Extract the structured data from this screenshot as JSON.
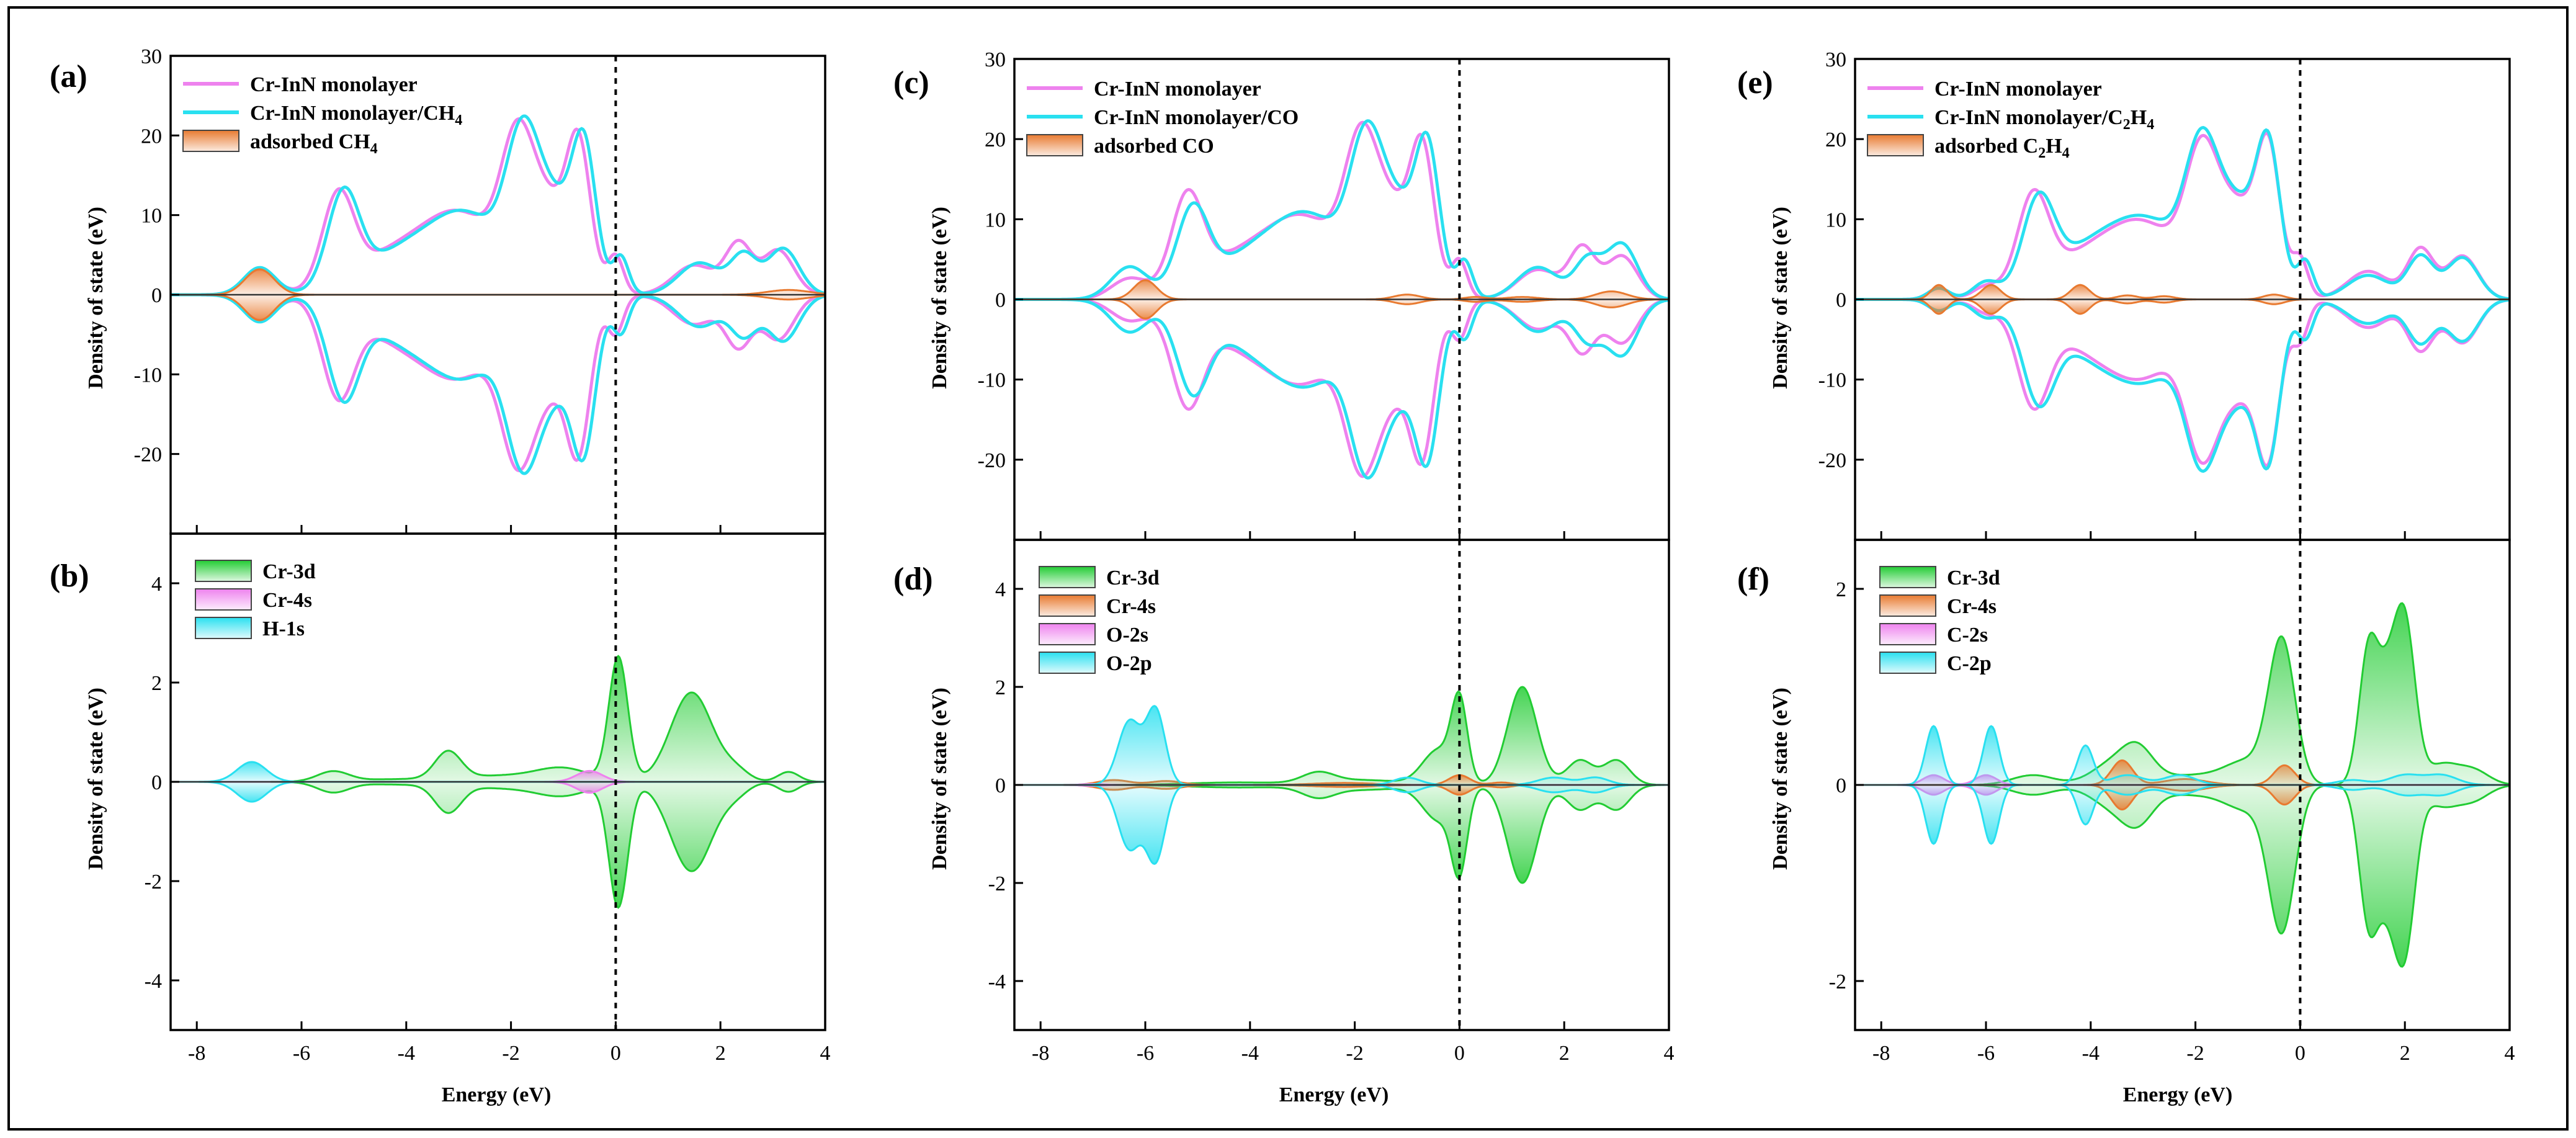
{
  "colors": {
    "pink": "#ee82ee",
    "cyan": "#29e0f0",
    "orange": "#e87a30",
    "green": "#22cc33",
    "frame": "#000000"
  },
  "chart_data": [
    {
      "panel": "(a)",
      "type": "line",
      "ylim": [
        -30,
        30
      ],
      "yticks": [
        -20,
        -10,
        0,
        10,
        20,
        30
      ],
      "xlim": [
        -8.5,
        4
      ],
      "xticks": [
        -8,
        -6,
        -4,
        -2,
        0,
        2,
        4
      ],
      "xlabel": "",
      "ylabel": "Density of state (eV)",
      "legend": [
        "Cr-InN monolayer",
        "Cr-InN monolayer/CH4",
        "adsorbed CH4"
      ],
      "series": [
        {
          "name": "Cr-InN monolayer",
          "color": "pink",
          "fill": false,
          "peaks": [
            [
              -6.8,
              3.2,
              0.3
            ],
            [
              -5.3,
              11.3,
              0.3
            ],
            [
              -4.2,
              5,
              0.8
            ],
            [
              -2.9,
              9,
              0.7
            ],
            [
              -1.9,
              13,
              0.3
            ],
            [
              -0.7,
              14.8,
              0.22
            ],
            [
              -1.3,
              11.5,
              0.5
            ],
            [
              0,
              4.6,
              0.15
            ],
            [
              1.5,
              3.7,
              0.4
            ],
            [
              2.35,
              6.2,
              0.25
            ],
            [
              3.1,
              5.6,
              0.3
            ]
          ]
        },
        {
          "name": "Cr-InN monolayer/CH4",
          "color": "cyan",
          "fill": false,
          "peaks": [
            [
              -6.8,
              3.4,
              0.3
            ],
            [
              -5.2,
              11.5,
              0.3
            ],
            [
              -4.1,
              5,
              0.8
            ],
            [
              -2.8,
              9,
              0.7
            ],
            [
              -1.8,
              13.2,
              0.3
            ],
            [
              -0.6,
              14.7,
              0.22
            ],
            [
              -1.2,
              11.8,
              0.5
            ],
            [
              0.1,
              4.5,
              0.15
            ],
            [
              1.6,
              4,
              0.4
            ],
            [
              2.45,
              4.8,
              0.25
            ],
            [
              3.2,
              5.8,
              0.3
            ]
          ]
        },
        {
          "name": "adsorbed CH4",
          "color": "orange",
          "fill": true,
          "peaks": [
            [
              -6.8,
              3.2,
              0.28
            ],
            [
              3.3,
              0.6,
              0.4
            ]
          ]
        }
      ]
    },
    {
      "panel": "(b)",
      "type": "line",
      "ylim": [
        -5,
        5
      ],
      "yticks": [
        -4,
        -2,
        0,
        2,
        4
      ],
      "xlim": [
        -8.5,
        4
      ],
      "xticks": [
        -8,
        -6,
        -4,
        -2,
        0,
        2,
        4
      ],
      "xlabel": "Energy (eV)",
      "ylabel": "Density of state (eV)",
      "legend": [
        "Cr-3d",
        "Cr-4s",
        "H-1s"
      ],
      "series": [
        {
          "name": "Cr-3d",
          "color": "green",
          "fill": true,
          "peaks": [
            [
              -5.4,
              0.2,
              0.3
            ],
            [
              -4.2,
              0.05,
              0.8
            ],
            [
              -3.2,
              0.55,
              0.25
            ],
            [
              -2.2,
              0.12,
              0.8
            ],
            [
              -1,
              0.25,
              0.5
            ],
            [
              0.05,
              2.5,
              0.18
            ],
            [
              1.45,
              1.8,
              0.4
            ],
            [
              2.3,
              0.2,
              0.25
            ],
            [
              3.3,
              0.2,
              0.2
            ]
          ]
        },
        {
          "name": "Cr-4s",
          "color": "pink",
          "fill": true,
          "peaks": [
            [
              -0.5,
              0.22,
              0.25
            ]
          ]
        },
        {
          "name": "H-1s",
          "color": "cyan",
          "fill": true,
          "peaks": [
            [
              -6.95,
              0.4,
              0.28
            ]
          ]
        }
      ]
    },
    {
      "panel": "(c)",
      "type": "line",
      "ylim": [
        -30,
        30
      ],
      "yticks": [
        -20,
        -10,
        0,
        10,
        20,
        30
      ],
      "xlim": [
        -8.5,
        4
      ],
      "xticks": [
        -8,
        -6,
        -4,
        -2,
        0,
        2,
        4
      ],
      "xlabel": "",
      "ylabel": "Density of state (eV)",
      "legend": [
        "Cr-InN monolayer",
        "Cr-InN monolayer/CO",
        "adsorbed CO"
      ],
      "series": [
        {
          "name": "Cr-InN monolayer",
          "color": "pink",
          "fill": false,
          "peaks": [
            [
              -6.3,
              2.5,
              0.35
            ],
            [
              -5.2,
              11.3,
              0.3
            ],
            [
              -4.2,
              5,
              0.8
            ],
            [
              -2.9,
              9,
              0.7
            ],
            [
              -1.9,
              13,
              0.3
            ],
            [
              -0.7,
              14.6,
              0.22
            ],
            [
              -1.3,
              11.5,
              0.5
            ],
            [
              0,
              4.6,
              0.15
            ],
            [
              1.5,
              3.7,
              0.4
            ],
            [
              2.35,
              6.2,
              0.25
            ],
            [
              3.1,
              5.4,
              0.3
            ]
          ]
        },
        {
          "name": "Cr-InN monolayer/CO",
          "color": "cyan",
          "fill": false,
          "peaks": [
            [
              -6.3,
              4,
              0.35
            ],
            [
              -5.1,
              10,
              0.3
            ],
            [
              -4,
              5,
              0.8
            ],
            [
              -2.8,
              9,
              0.7
            ],
            [
              -1.8,
              13,
              0.3
            ],
            [
              -0.6,
              14.7,
              0.22
            ],
            [
              -1.2,
              11.8,
              0.5
            ],
            [
              0.1,
              4.5,
              0.15
            ],
            [
              1.5,
              4,
              0.4
            ],
            [
              2.45,
              4.7,
              0.25
            ],
            [
              3.1,
              6.9,
              0.3
            ]
          ]
        },
        {
          "name": "adsorbed CO",
          "color": "orange",
          "fill": true,
          "peaks": [
            [
              -6,
              2.4,
              0.22
            ],
            [
              -1,
              0.6,
              0.25
            ],
            [
              0.3,
              0.3,
              0.2
            ],
            [
              1.2,
              0.3,
              0.3
            ],
            [
              2.9,
              1,
              0.3
            ]
          ]
        }
      ]
    },
    {
      "panel": "(d)",
      "type": "line",
      "ylim": [
        -5,
        5
      ],
      "yticks": [
        -4,
        -2,
        0,
        2,
        4
      ],
      "xlim": [
        -8.5,
        4
      ],
      "xticks": [
        -8,
        -6,
        -4,
        -2,
        0,
        2,
        4
      ],
      "xlabel": "Energy (eV)",
      "ylabel": "Density of state (eV)",
      "legend": [
        "Cr-3d",
        "Cr-4s",
        "O-2s",
        "O-2p"
      ],
      "series": [
        {
          "name": "Cr-3d",
          "color": "green",
          "fill": true,
          "peaks": [
            [
              -4.3,
              0.05,
              0.9
            ],
            [
              -2.7,
              0.2,
              0.3
            ],
            [
              -1.9,
              0.1,
              0.8
            ],
            [
              -0.4,
              0.7,
              0.3
            ],
            [
              0,
              1.6,
              0.15
            ],
            [
              1.2,
              2,
              0.28
            ],
            [
              2.3,
              0.5,
              0.25
            ],
            [
              3,
              0.5,
              0.25
            ]
          ]
        },
        {
          "name": "Cr-4s",
          "color": "orange",
          "fill": true,
          "peaks": [
            [
              -6.6,
              0.1,
              0.3
            ],
            [
              -5.6,
              0.08,
              0.3
            ],
            [
              -2.2,
              0.04,
              0.6
            ],
            [
              0,
              0.2,
              0.2
            ],
            [
              0.8,
              0.05,
              0.2
            ]
          ]
        },
        {
          "name": "O-2s",
          "color": "pink",
          "fill": true,
          "peaks": [
            [
              -7,
              0.02,
              0.2
            ]
          ]
        },
        {
          "name": "O-2p",
          "color": "cyan",
          "fill": true,
          "peaks": [
            [
              -6.3,
              1.3,
              0.22
            ],
            [
              -5.8,
              1.5,
              0.18
            ],
            [
              -1,
              0.15,
              0.25
            ],
            [
              1.8,
              0.15,
              0.3
            ],
            [
              2.6,
              0.15,
              0.25
            ]
          ]
        }
      ]
    },
    {
      "panel": "(e)",
      "type": "line",
      "ylim": [
        -30,
        30
      ],
      "yticks": [
        -20,
        -10,
        0,
        10,
        20,
        30
      ],
      "xlim": [
        -8.5,
        4
      ],
      "xticks": [
        -8,
        -6,
        -4,
        -2,
        0,
        2,
        4
      ],
      "xlabel": "",
      "ylabel": "Density of state (eV)",
      "legend": [
        "Cr-InN monolayer",
        "Cr-InN monolayer/C2H4",
        "adsorbed C2H4"
      ],
      "series": [
        {
          "name": "Cr-InN monolayer",
          "color": "pink",
          "fill": false,
          "peaks": [
            [
              -6.9,
              1.4,
              0.2
            ],
            [
              -6,
              1.4,
              0.25
            ],
            [
              -5.1,
              11.3,
              0.3
            ],
            [
              -4.1,
              5,
              0.8
            ],
            [
              -2.9,
              8,
              0.7
            ],
            [
              -1.9,
              13,
              0.3
            ],
            [
              -0.6,
              14.8,
              0.22
            ],
            [
              -1.2,
              11.5,
              0.5
            ],
            [
              0,
              4.6,
              0.15
            ],
            [
              1.3,
              3.5,
              0.4
            ],
            [
              2.3,
              6.2,
              0.25
            ],
            [
              3.1,
              5.4,
              0.3
            ]
          ]
        },
        {
          "name": "Cr-InN monolayer/C2H4",
          "color": "cyan",
          "fill": false,
          "peaks": [
            [
              -6.9,
              1.4,
              0.2
            ],
            [
              -6,
              2,
              0.25
            ],
            [
              -5,
              10.5,
              0.3
            ],
            [
              -4,
              6,
              0.8
            ],
            [
              -2.8,
              8,
              0.7
            ],
            [
              -1.9,
              13.2,
              0.3
            ],
            [
              -0.6,
              15,
              0.22
            ],
            [
              -1.2,
              11.8,
              0.5
            ],
            [
              0.1,
              4.5,
              0.15
            ],
            [
              1.3,
              3,
              0.4
            ],
            [
              2.3,
              5.3,
              0.25
            ],
            [
              3.1,
              5.2,
              0.3
            ]
          ]
        },
        {
          "name": "adsorbed C2H4",
          "color": "orange",
          "fill": true,
          "peaks": [
            [
              -6.9,
              1.8,
              0.15
            ],
            [
              -5.9,
              1.8,
              0.18
            ],
            [
              -4.2,
              1.8,
              0.18
            ],
            [
              -3.3,
              0.5,
              0.2
            ],
            [
              -2.6,
              0.4,
              0.2
            ],
            [
              -0.5,
              0.6,
              0.2
            ]
          ]
        }
      ]
    },
    {
      "panel": "(f)",
      "type": "line",
      "ylim": [
        -2.5,
        2.5
      ],
      "yticks": [
        -2,
        0,
        2
      ],
      "xlim": [
        -8.5,
        4
      ],
      "xticks": [
        -8,
        -6,
        -4,
        -2,
        0,
        2,
        4
      ],
      "xlabel": "Energy (eV)",
      "ylabel": "Density of state (eV)",
      "legend": [
        "Cr-3d",
        "Cr-4s",
        "C-2s",
        "C-2p"
      ],
      "series": [
        {
          "name": "Cr-3d",
          "color": "green",
          "fill": true,
          "peaks": [
            [
              -5.1,
              0.1,
              0.4
            ],
            [
              -3.6,
              0.2,
              0.4
            ],
            [
              -3.1,
              0.3,
              0.3
            ],
            [
              -2,
              0.1,
              0.8
            ],
            [
              -1,
              0.2,
              0.4
            ],
            [
              -0.35,
              1.45,
              0.25
            ],
            [
              1.3,
              1.3,
              0.18
            ],
            [
              2,
              1.6,
              0.2
            ],
            [
              1.65,
              0.9,
              0.2
            ],
            [
              2.7,
              0.2,
              0.3
            ],
            [
              3.3,
              0.15,
              0.3
            ]
          ]
        },
        {
          "name": "Cr-4s",
          "color": "orange",
          "fill": true,
          "peaks": [
            [
              -3.4,
              0.25,
              0.2
            ],
            [
              -2.2,
              0.06,
              0.4
            ],
            [
              -0.3,
              0.2,
              0.2
            ]
          ]
        },
        {
          "name": "C-2s",
          "color": "pink",
          "fill": true,
          "peaks": [
            [
              -7,
              0.1,
              0.2
            ],
            [
              -6,
              0.1,
              0.2
            ]
          ]
        },
        {
          "name": "C-2p",
          "color": "cyan",
          "fill": true,
          "peaks": [
            [
              -7,
              0.6,
              0.15
            ],
            [
              -5.9,
              0.6,
              0.15
            ],
            [
              -4.1,
              0.4,
              0.15
            ],
            [
              -3.3,
              0.1,
              0.3
            ],
            [
              -2.3,
              0.1,
              0.3
            ],
            [
              1,
              0.05,
              0.3
            ],
            [
              2,
              0.1,
              0.3
            ],
            [
              2.7,
              0.1,
              0.3
            ]
          ]
        }
      ]
    }
  ]
}
